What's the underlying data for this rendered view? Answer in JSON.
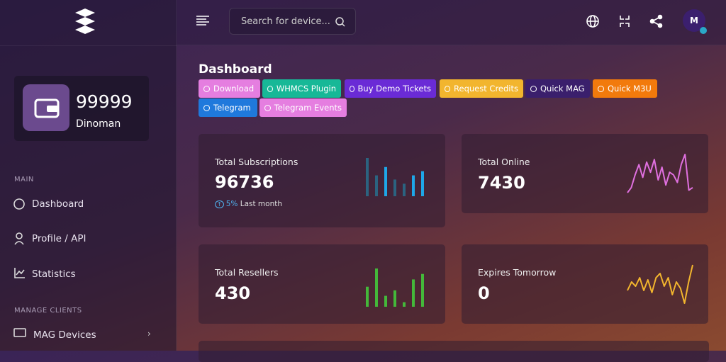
{
  "sidebar": {
    "balance": 99999,
    "user": "Dinoman",
    "sections": [
      {
        "title": "MAIN",
        "items": [
          "Dashboard",
          "Profile / API",
          "Statistics"
        ]
      },
      {
        "title": "MANAGE CLIENTS",
        "items": [
          "MAG Devices"
        ]
      }
    ]
  },
  "topbar": {
    "search_placeholder": "Search for device...",
    "avatar": "M"
  },
  "page_title": "Dashboard",
  "buttons": [
    {
      "label": "Download",
      "color": "#e57ee0"
    },
    {
      "label": "WHMCS Plugin",
      "color": "#17b897"
    },
    {
      "label": "Buy Demo Tickets",
      "color": "#6a2bd6"
    },
    {
      "label": "Request Credits",
      "color": "#f2b52e"
    },
    {
      "label": "Quick MAG",
      "color": "#3a1f6c"
    },
    {
      "label": "Quick M3U",
      "color": "#f27a0c"
    },
    {
      "label": "Telegram",
      "color": "#1f79dc"
    },
    {
      "label": "Telegram Events",
      "color": "#e57ee0"
    }
  ],
  "cards": [
    {
      "title": "Total Subscriptions",
      "value": 96736,
      "change": "5%",
      "change_note": "Last month",
      "spark": {
        "type": "bar",
        "colors": [
          "#2b6380",
          "#2b6380",
          "#1ea7e8",
          "#2b6380",
          "#2b6380",
          "#1ea7e8",
          "#1ea7e8"
        ],
        "values": [
          55,
          30,
          42,
          24,
          18,
          30,
          36
        ]
      }
    },
    {
      "title": "Total Online",
      "value": 7430,
      "spark": {
        "type": "line",
        "color": "#e070e0",
        "values": [
          8,
          12,
          22,
          30,
          20,
          32,
          24,
          34,
          18,
          28,
          14,
          24,
          22,
          16,
          30,
          38,
          10,
          12
        ]
      }
    },
    {
      "title": "Total Resellers",
      "value": 430,
      "spark": {
        "type": "bar",
        "colors": [
          "#44b83a",
          "#44b83a",
          "#44b83a",
          "#44b83a",
          "#44b83a",
          "#44b83a",
          "#44b83a"
        ],
        "values": [
          22,
          42,
          12,
          18,
          5,
          30,
          36
        ]
      }
    },
    {
      "title": "Expires Tomorrow",
      "value": 0,
      "spark": {
        "type": "line",
        "color": "#f2b52e",
        "values": [
          10,
          14,
          12,
          16,
          10,
          15,
          9,
          16,
          18,
          12,
          16,
          8,
          14,
          11,
          4,
          14,
          22
        ]
      }
    }
  ]
}
